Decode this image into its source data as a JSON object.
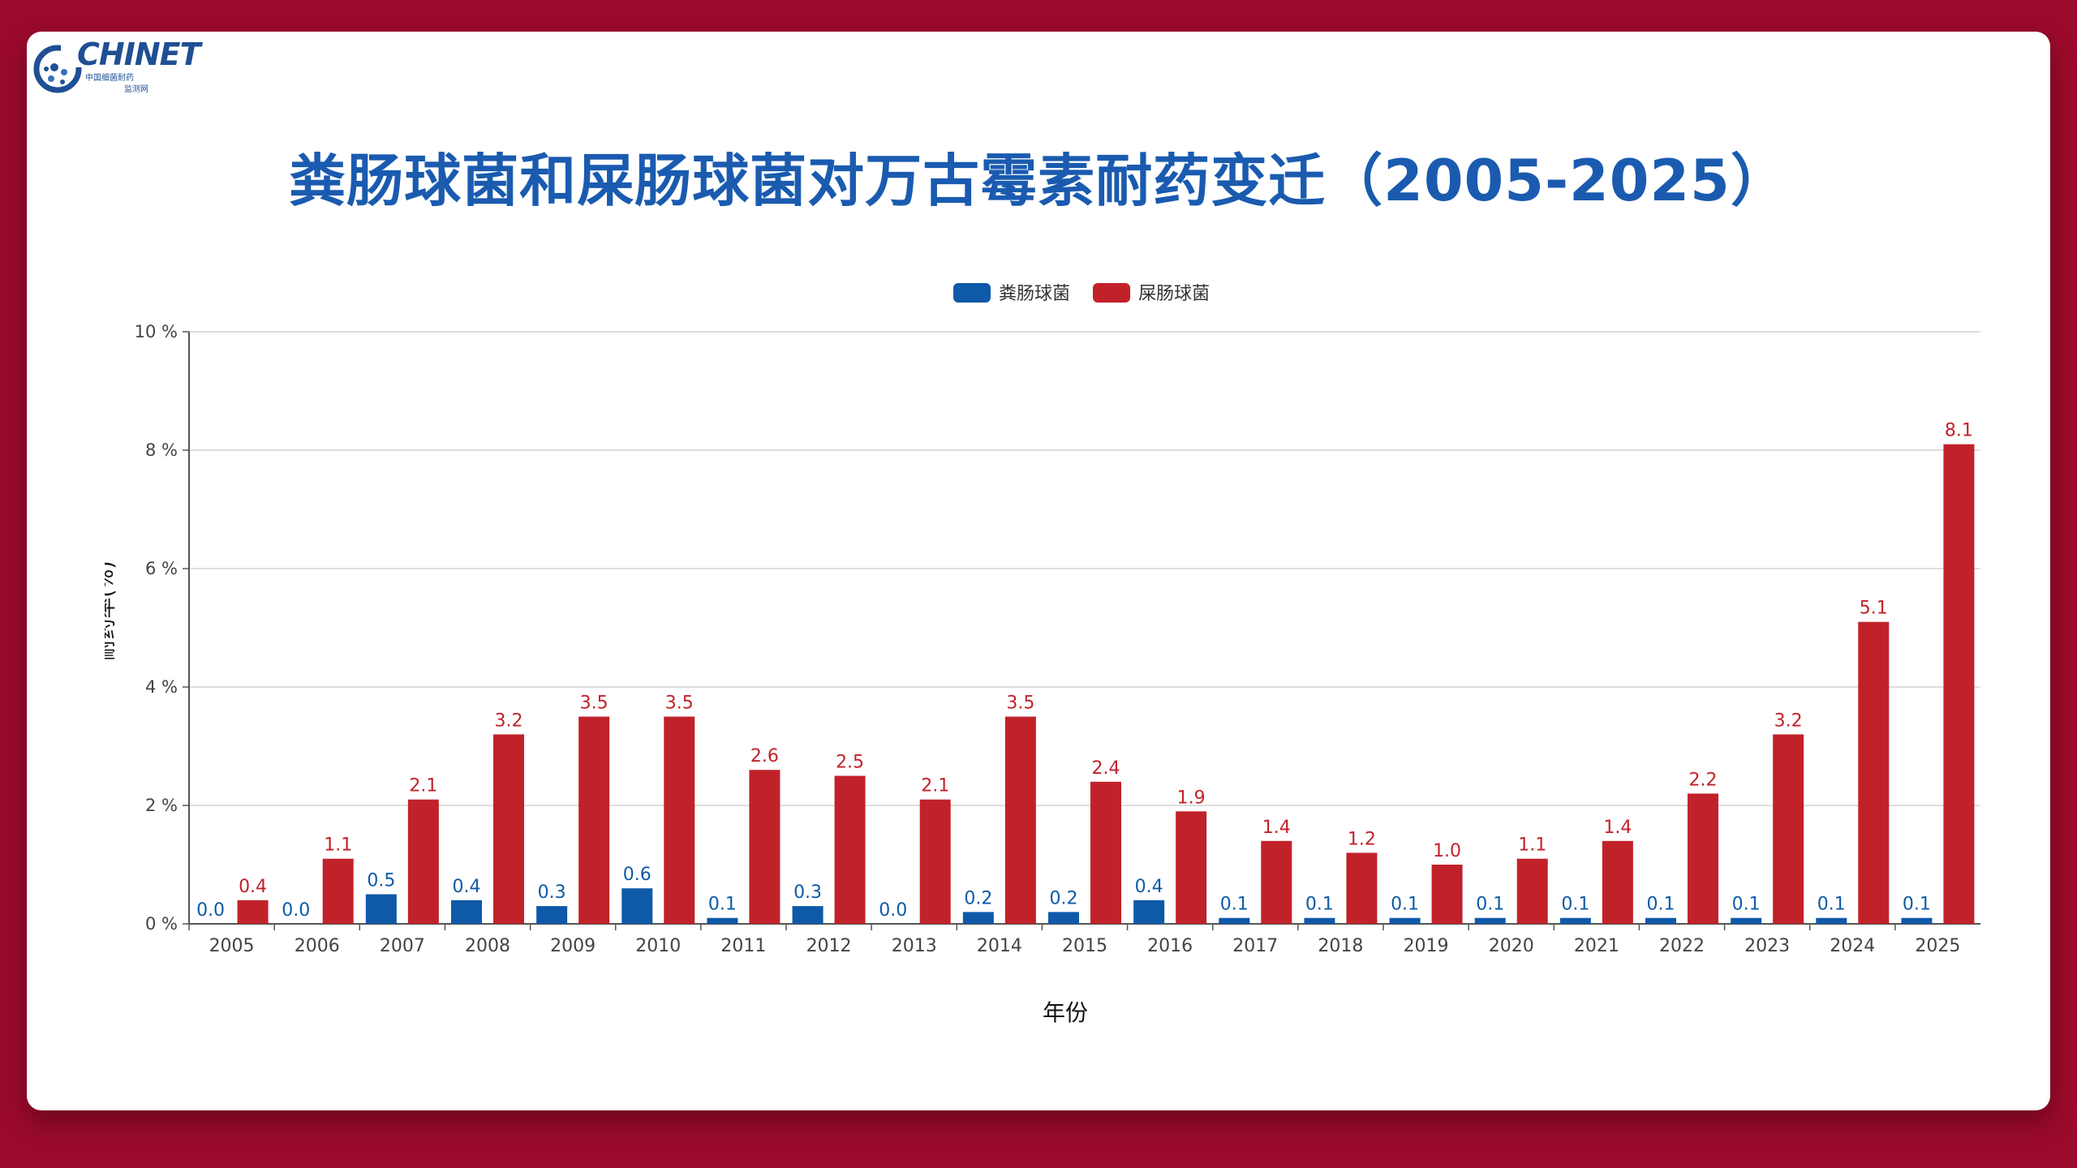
{
  "logo": {
    "text": "CHINET",
    "subtitle_line1": "中国细菌耐药",
    "subtitle_line2": "监测网"
  },
  "page_title": "粪肠球菌和屎肠球菌对万古霉素耐药变迁（2005-2025）",
  "colors": {
    "background": "#9a0a2c",
    "title": "#1a5bb0",
    "series_faecalis": "#0e5aa8",
    "series_faecium": "#c1222a"
  },
  "chart_data": {
    "type": "bar",
    "title": "",
    "xlabel": "年份",
    "ylabel": "耐药率(%)",
    "ylim": [
      0,
      10
    ],
    "yticks": [
      0,
      2,
      4,
      6,
      8,
      10
    ],
    "ytick_labels": [
      "0 %",
      "2 %",
      "4 %",
      "6 %",
      "8 %",
      "10 %"
    ],
    "grid": true,
    "legend_position": "top-center",
    "categories": [
      "2005",
      "2006",
      "2007",
      "2008",
      "2009",
      "2010",
      "2011",
      "2012",
      "2013",
      "2014",
      "2015",
      "2016",
      "2017",
      "2018",
      "2019",
      "2020",
      "2021",
      "2022",
      "2023",
      "2024",
      "2025"
    ],
    "series": [
      {
        "name": "粪肠球菌",
        "color": "#0e5aa8",
        "values": [
          0.0,
          0.0,
          0.5,
          0.4,
          0.3,
          0.6,
          0.1,
          0.3,
          0.0,
          0.2,
          0.2,
          0.4,
          0.1,
          0.1,
          0.1,
          0.1,
          0.1,
          0.1,
          0.1,
          0.1,
          0.1
        ]
      },
      {
        "name": "屎肠球菌",
        "color": "#c1222a",
        "values": [
          0.4,
          1.1,
          2.1,
          3.2,
          3.5,
          3.5,
          2.6,
          2.5,
          2.1,
          3.5,
          2.4,
          1.9,
          1.4,
          1.2,
          1.0,
          1.1,
          1.4,
          2.2,
          3.2,
          5.1,
          8.1
        ]
      }
    ]
  }
}
